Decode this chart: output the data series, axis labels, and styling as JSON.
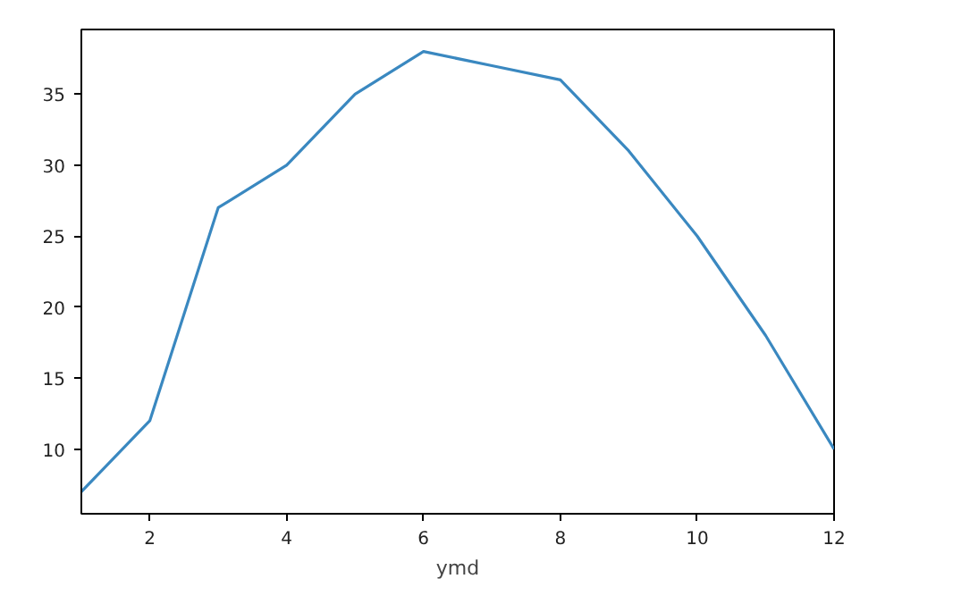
{
  "chart_data": {
    "type": "line",
    "xlabel": "ymd",
    "x": [
      1,
      2,
      3,
      4,
      5,
      6,
      7,
      8,
      9,
      10,
      11,
      12
    ],
    "series": [
      {
        "color": "#3a88c0",
        "values": [
          7,
          12,
          27,
          30,
          35,
          38,
          37,
          36,
          31,
          25,
          18,
          10
        ]
      }
    ],
    "xlim": [
      1,
      12
    ],
    "xticks": [
      2,
      4,
      6,
      8,
      10,
      12
    ],
    "ylim": [
      5.45,
      39.55
    ],
    "yticks": [
      10,
      15,
      20,
      25,
      30,
      35
    ],
    "line_style": "solid"
  }
}
